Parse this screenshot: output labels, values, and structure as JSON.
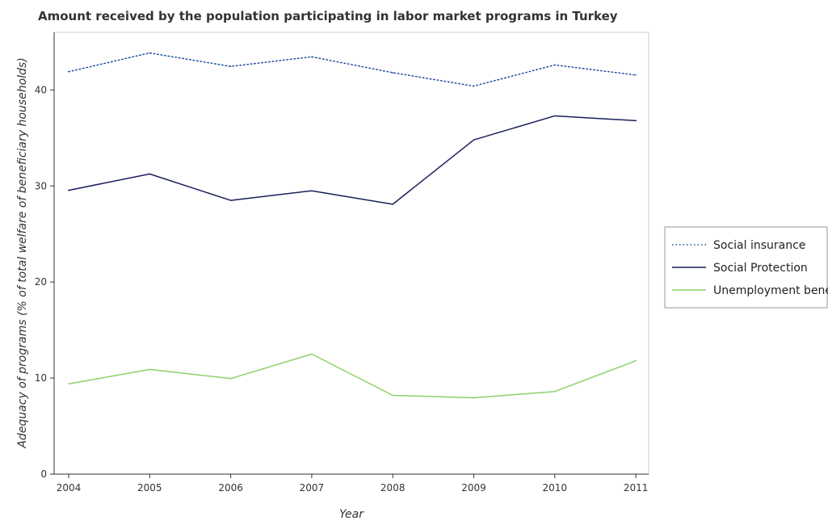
{
  "chart_data": {
    "type": "line",
    "title": "Amount received by the population participating in labor market programs in Turkey",
    "xlabel": "Year",
    "ylabel": "Adequacy of programs (% of total welfare of beneficiary households)",
    "categories": [
      "2004",
      "2005",
      "2006",
      "2007",
      "2008",
      "2009",
      "2010",
      "2011"
    ],
    "ylim": [
      0,
      46
    ],
    "yticks": [
      0,
      10,
      20,
      30,
      40
    ],
    "ytick_labels": [
      "0",
      "10",
      "20",
      "30",
      "40"
    ],
    "grid": false,
    "legend_position": "right",
    "series": [
      {
        "name": "Social insurance",
        "color": "#1f4e9c",
        "style": "dotted",
        "values": [
          41.9,
          43.85,
          42.45,
          43.45,
          41.8,
          40.4,
          42.6,
          41.55
        ]
      },
      {
        "name": "Social Protection",
        "color": "#1a1f5c",
        "style": "solid",
        "values": [
          29.55,
          31.25,
          28.5,
          29.5,
          28.1,
          34.8,
          37.3,
          36.8
        ]
      },
      {
        "name": "Unemployment benefits",
        "color": "#8fd16a",
        "style": "solid",
        "values": [
          9.4,
          10.9,
          9.95,
          12.5,
          8.2,
          7.95,
          8.6,
          11.8
        ]
      }
    ]
  }
}
